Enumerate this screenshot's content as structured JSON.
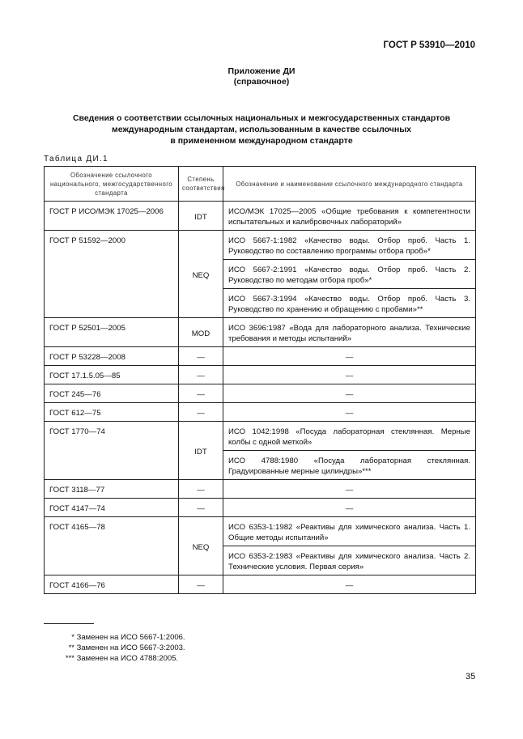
{
  "header": {
    "doc_code": "ГОСТ Р 53910—2010"
  },
  "annex": {
    "title": "Приложение ДИ",
    "subtitle": "(справочное)"
  },
  "heading": [
    "Сведения о соответствии ссылочных национальных и межгосударственных стандартов",
    "международным стандартам, использованным в качестве ссылочных",
    "в примененном международном стандарте"
  ],
  "table": {
    "label": "Таблица ДИ.1",
    "columns": [
      "Обозначение ссылочного национального, межгосударственного стандарта",
      "Степень соответствия",
      "Обозначение и наименование ссылочного международного стандарта"
    ],
    "groups": [
      {
        "national": "ГОСТ Р ИСО/МЭК 17025—2006",
        "degree": "IDT",
        "intl": [
          "ИСО/МЭК 17025—2005 «Общие требования к компетентности испытательных и калибровочных лабораторий»"
        ]
      },
      {
        "national": "ГОСТ Р 51592—2000",
        "degree": "NEQ",
        "intl": [
          "ИСО 5667-1:1982 «Качество воды. Отбор проб. Часть 1. Руководство по составлению программы отбора проб»*",
          "ИСО 5667-2:1991 «Качество воды. Отбор проб. Часть 2. Руководство по методам отбора проб»*",
          "ИСО 5667-3:1994 «Качество воды. Отбор проб. Часть 3. Руководство по хранению и обращению с пробами»**"
        ]
      },
      {
        "national": "ГОСТ Р 52501—2005",
        "degree": "MOD",
        "intl": [
          "ИСО 3696:1987 «Вода для лабораторного анализа. Технические требования и методы испытаний»"
        ]
      },
      {
        "national": "ГОСТ Р 53228—2008",
        "degree": "—",
        "intl": [
          "—"
        ]
      },
      {
        "national": "ГОСТ 17.1.5.05—85",
        "degree": "—",
        "intl": [
          "—"
        ]
      },
      {
        "national": "ГОСТ 245—76",
        "degree": "—",
        "intl": [
          "—"
        ]
      },
      {
        "national": "ГОСТ 612—75",
        "degree": "—",
        "intl": [
          "—"
        ]
      },
      {
        "national": "ГОСТ 1770—74",
        "degree": "IDT",
        "intl": [
          "ИСО 1042:1998 «Посуда лабораторная стеклянная. Мерные колбы с одной меткой»",
          "ИСО 4788:1980 «Посуда лабораторная стеклянная. Градуированные мерные цилиндры»***"
        ]
      },
      {
        "national": "ГОСТ 3118—77",
        "degree": "—",
        "intl": [
          "—"
        ]
      },
      {
        "national": "ГОСТ 4147—74",
        "degree": "—",
        "intl": [
          "—"
        ]
      },
      {
        "national": "ГОСТ 4165—78",
        "degree": "NEQ",
        "intl": [
          "ИСО 6353-1:1982 «Реактивы для химического анализа. Часть 1. Общие методы испытаний»",
          "ИСО 6353-2:1983 «Реактивы для химического анализа. Часть 2. Технические условия. Первая серия»"
        ]
      },
      {
        "national": "ГОСТ 4166—76",
        "degree": "—",
        "intl": [
          "—"
        ]
      }
    ]
  },
  "footnotes": [
    {
      "mark": "*",
      "text": "Заменен на ИСО 5667-1:2006."
    },
    {
      "mark": "**",
      "text": "Заменен на ИСО 5667-3:2003."
    },
    {
      "mark": "***",
      "text": "Заменен на ИСО 4788:2005."
    }
  ],
  "page_number": "35"
}
